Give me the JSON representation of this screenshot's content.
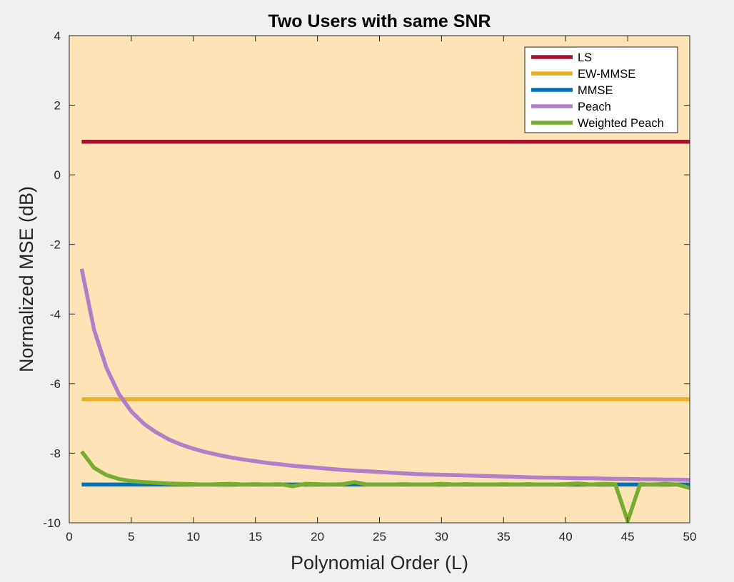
{
  "chart_data": {
    "type": "line",
    "title": "Two Users with same SNR",
    "xlabel": "Polynomial Order (L)",
    "ylabel": "Normalized MSE (dB)",
    "xlim": [
      0,
      50
    ],
    "ylim": [
      -10,
      4
    ],
    "xticks": [
      0,
      5,
      10,
      15,
      20,
      25,
      30,
      35,
      40,
      45,
      50
    ],
    "yticks": [
      -10,
      -8,
      -6,
      -4,
      -2,
      0,
      2,
      4
    ],
    "grid": false,
    "legend_position": "top-right",
    "background_color": "#fde4b6",
    "series": [
      {
        "name": "LS",
        "color": "#a2142f",
        "x": [
          1,
          50
        ],
        "y": [
          0.95,
          0.95
        ]
      },
      {
        "name": "EW-MMSE",
        "color": "#edb120",
        "x": [
          1,
          50
        ],
        "y": [
          -6.45,
          -6.45
        ]
      },
      {
        "name": "MMSE",
        "color": "#0072bd",
        "x": [
          1,
          50
        ],
        "y": [
          -8.9,
          -8.9
        ]
      },
      {
        "name": "Peach",
        "color": "#b27ec8",
        "x": [
          1,
          2,
          3,
          4,
          5,
          6,
          7,
          8,
          9,
          10,
          11,
          12,
          13,
          14,
          15,
          16,
          17,
          18,
          19,
          20,
          21,
          22,
          23,
          24,
          25,
          26,
          27,
          28,
          29,
          30,
          31,
          32,
          33,
          34,
          35,
          36,
          37,
          38,
          39,
          40,
          41,
          42,
          43,
          44,
          45,
          46,
          47,
          48,
          49,
          50
        ],
        "y": [
          -2.7,
          -4.45,
          -5.55,
          -6.3,
          -6.8,
          -7.15,
          -7.4,
          -7.6,
          -7.75,
          -7.87,
          -7.97,
          -8.05,
          -8.12,
          -8.18,
          -8.23,
          -8.28,
          -8.32,
          -8.36,
          -8.39,
          -8.42,
          -8.45,
          -8.48,
          -8.5,
          -8.52,
          -8.54,
          -8.56,
          -8.58,
          -8.6,
          -8.61,
          -8.62,
          -8.63,
          -8.64,
          -8.65,
          -8.66,
          -8.67,
          -8.68,
          -8.69,
          -8.7,
          -8.7,
          -8.71,
          -8.72,
          -8.72,
          -8.73,
          -8.74,
          -8.74,
          -8.75,
          -8.75,
          -8.76,
          -8.76,
          -8.77
        ]
      },
      {
        "name": "Weighted Peach",
        "color": "#77ac30",
        "x": [
          1,
          2,
          3,
          4,
          5,
          6,
          7,
          8,
          9,
          10,
          11,
          12,
          13,
          14,
          15,
          16,
          17,
          18,
          19,
          20,
          21,
          22,
          23,
          24,
          25,
          26,
          27,
          28,
          29,
          30,
          31,
          32,
          33,
          34,
          35,
          36,
          37,
          38,
          39,
          40,
          41,
          42,
          43,
          44,
          45,
          46,
          47,
          48,
          49,
          50
        ],
        "y": [
          -7.95,
          -8.42,
          -8.63,
          -8.74,
          -8.8,
          -8.83,
          -8.85,
          -8.87,
          -8.88,
          -8.89,
          -8.9,
          -8.89,
          -8.88,
          -8.9,
          -8.89,
          -8.9,
          -8.89,
          -8.95,
          -8.88,
          -8.89,
          -8.9,
          -8.89,
          -8.83,
          -8.9,
          -8.9,
          -8.9,
          -8.89,
          -8.9,
          -8.9,
          -8.88,
          -8.9,
          -8.89,
          -8.9,
          -8.9,
          -8.89,
          -8.9,
          -8.89,
          -8.9,
          -8.9,
          -8.89,
          -8.87,
          -8.9,
          -8.88,
          -8.89,
          -9.95,
          -8.89,
          -8.9,
          -8.88,
          -8.9,
          -9.0
        ]
      }
    ]
  }
}
